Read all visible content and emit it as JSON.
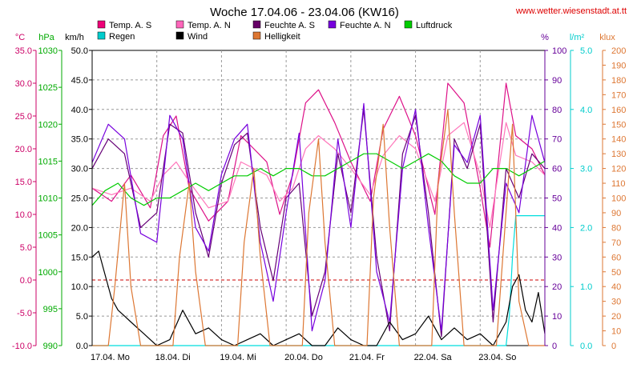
{
  "chart_data": {
    "type": "line",
    "title": "Woche 17.04.06 - 23.04.06 (KW16)",
    "source_label": "www.wetter.wiesenstadt.at.tt",
    "grid": true,
    "x_labels": [
      "17.04. Mo",
      "18.04. Di",
      "19.04. Mi",
      "20.04. Do",
      "21.04. Fr",
      "22.04. Sa",
      "23.04. So"
    ],
    "x_days": [
      0,
      7
    ],
    "axes": [
      {
        "id": "temp",
        "unit": "°C",
        "color": "#cc0066",
        "ylim": [
          -10,
          35
        ],
        "ticks": [
          "-10.0",
          "-5.0",
          "0.0",
          "5.0",
          "10.0",
          "15.0",
          "20.0",
          "25.0",
          "30.0",
          "35.0"
        ]
      },
      {
        "id": "press",
        "unit": "hPa",
        "color": "#00aa00",
        "ylim": [
          990,
          1030
        ],
        "ticks": [
          "990",
          "995",
          "1000",
          "1005",
          "1010",
          "1015",
          "1020",
          "1025",
          "1030"
        ]
      },
      {
        "id": "wind",
        "unit": "km/h",
        "color": "#000000",
        "ylim": [
          0,
          50
        ],
        "ticks": [
          "0.0",
          "5.0",
          "10.0",
          "15.0",
          "20.0",
          "25.0",
          "30.0",
          "35.0",
          "40.0",
          "45.0",
          "50.0"
        ]
      },
      {
        "id": "hum",
        "unit": "%",
        "color": "#660099",
        "ylim": [
          0,
          100
        ],
        "ticks": [
          "0",
          "10",
          "20",
          "30",
          "40",
          "50",
          "60",
          "70",
          "80",
          "90",
          "100"
        ]
      },
      {
        "id": "rain",
        "unit": "l/m²",
        "color": "#00cccc",
        "ylim": [
          0,
          5
        ],
        "ticks": [
          "0.0",
          "1.0",
          "2.0",
          "3.0",
          "4.0",
          "5.0"
        ]
      },
      {
        "id": "light",
        "unit": "klux",
        "color": "#dd7733",
        "ylim": [
          0,
          200
        ],
        "ticks": [
          "0",
          "10",
          "20",
          "30",
          "40",
          "50",
          "60",
          "70",
          "80",
          "90",
          "100",
          "110",
          "120",
          "130",
          "140",
          "150",
          "160",
          "170",
          "180",
          "190",
          "200"
        ]
      }
    ],
    "legend": [
      {
        "label": "Temp. A. S",
        "color": "#ee0077"
      },
      {
        "label": "Temp. A. N",
        "color": "#ff66bb"
      },
      {
        "label": "Feuchte A. S",
        "color": "#660066"
      },
      {
        "label": "Feuchte A. N",
        "color": "#7700dd"
      },
      {
        "label": "Luftdruck",
        "color": "#00cc00"
      },
      {
        "label": "Regen",
        "color": "#00cccc"
      },
      {
        "label": "Wind",
        "color": "#000000"
      },
      {
        "label": "Helligkeit",
        "color": "#dd7733"
      }
    ],
    "series": [
      {
        "name": "Temp. A. S",
        "axis": "temp",
        "color": "#dd1188",
        "x": [
          0,
          0.3,
          0.6,
          0.9,
          1.1,
          1.3,
          1.5,
          1.8,
          2.1,
          2.3,
          2.5,
          2.7,
          2.9,
          3.1,
          3.3,
          3.5,
          3.75,
          4.0,
          4.3,
          4.5,
          4.75,
          5.0,
          5.3,
          5.5,
          5.75,
          6.0,
          6.15,
          6.4,
          6.55,
          6.8,
          7.0
        ],
        "y": [
          14,
          12,
          16,
          11,
          22,
          25,
          14,
          9,
          12,
          22,
          20,
          18,
          10,
          16,
          27,
          29,
          24,
          18,
          12,
          23,
          28,
          22,
          10,
          30,
          27,
          14,
          5,
          30,
          22,
          20,
          16
        ]
      },
      {
        "name": "Temp. A. N",
        "axis": "temp",
        "color": "#ff77bb",
        "x": [
          0,
          0.3,
          0.6,
          0.9,
          1.1,
          1.3,
          1.5,
          1.8,
          2.1,
          2.3,
          2.5,
          2.7,
          2.9,
          3.1,
          3.3,
          3.5,
          3.75,
          4.0,
          4.3,
          4.5,
          4.75,
          5.0,
          5.3,
          5.5,
          5.75,
          6.0,
          6.15,
          6.4,
          6.55,
          6.8,
          7.0
        ],
        "y": [
          14,
          13,
          14,
          12,
          16,
          18,
          15,
          11,
          12,
          18,
          17,
          16,
          12,
          14,
          20,
          22,
          20,
          17,
          13,
          19,
          22,
          20,
          12,
          22,
          24,
          16,
          8,
          24,
          19,
          18,
          16
        ]
      },
      {
        "name": "Feuchte A. S",
        "axis": "hum",
        "color": "#660077",
        "x": [
          0,
          0.25,
          0.5,
          0.75,
          1.0,
          1.2,
          1.4,
          1.6,
          1.8,
          2.0,
          2.2,
          2.4,
          2.6,
          2.8,
          3.0,
          3.2,
          3.4,
          3.6,
          3.8,
          4.0,
          4.2,
          4.4,
          4.6,
          4.8,
          5.0,
          5.2,
          5.4,
          5.6,
          5.8,
          6.0,
          6.2,
          6.4,
          6.6,
          6.8,
          7.0
        ],
        "y": [
          60,
          70,
          65,
          40,
          45,
          75,
          72,
          45,
          30,
          55,
          68,
          72,
          40,
          22,
          50,
          55,
          10,
          25,
          65,
          45,
          80,
          30,
          5,
          65,
          78,
          45,
          3,
          70,
          60,
          75,
          8,
          60,
          50,
          65,
          60
        ]
      },
      {
        "name": "Feuchte A. N",
        "axis": "hum",
        "color": "#7700dd",
        "x": [
          0,
          0.25,
          0.5,
          0.75,
          1.0,
          1.2,
          1.4,
          1.6,
          1.8,
          2.0,
          2.2,
          2.4,
          2.6,
          2.8,
          3.0,
          3.2,
          3.4,
          3.6,
          3.8,
          4.0,
          4.2,
          4.4,
          4.6,
          4.8,
          5.0,
          5.2,
          5.4,
          5.6,
          5.8,
          6.0,
          6.2,
          6.4,
          6.6,
          6.8,
          7.0
        ],
        "y": [
          62,
          75,
          70,
          38,
          35,
          78,
          70,
          40,
          32,
          58,
          70,
          75,
          35,
          15,
          45,
          72,
          5,
          22,
          70,
          40,
          82,
          25,
          8,
          60,
          80,
          40,
          5,
          68,
          62,
          78,
          12,
          55,
          45,
          78,
          62
        ]
      },
      {
        "name": "Luftdruck",
        "axis": "press",
        "color": "#00cc00",
        "x": [
          0,
          0.2,
          0.4,
          0.6,
          0.8,
          1.0,
          1.2,
          1.4,
          1.6,
          1.8,
          2.0,
          2.2,
          2.4,
          2.6,
          2.8,
          3.0,
          3.2,
          3.4,
          3.6,
          3.8,
          4.0,
          4.2,
          4.4,
          4.6,
          4.8,
          5.0,
          5.2,
          5.4,
          5.6,
          5.8,
          6.0,
          6.2,
          6.4,
          6.6,
          6.8,
          7.0
        ],
        "y": [
          1009,
          1011,
          1012,
          1010,
          1009,
          1010,
          1010,
          1011,
          1012,
          1011,
          1012,
          1013,
          1013,
          1014,
          1013,
          1014,
          1014,
          1013,
          1013,
          1014,
          1015,
          1016,
          1016,
          1015,
          1014,
          1015,
          1016,
          1015,
          1013,
          1012,
          1012,
          1014,
          1014,
          1013,
          1014,
          1015
        ]
      },
      {
        "name": "Regen",
        "axis": "rain",
        "color": "#00dddd",
        "x": [
          0,
          6.4,
          6.45,
          6.5,
          6.55,
          6.6,
          7.0
        ],
        "y": [
          0,
          0,
          0.5,
          1.5,
          2.2,
          2.2,
          2.2
        ]
      },
      {
        "name": "Wind",
        "axis": "wind",
        "color": "#000000",
        "x": [
          0,
          0.1,
          0.2,
          0.3,
          0.4,
          0.5,
          0.6,
          0.7,
          0.8,
          0.9,
          1.0,
          1.2,
          1.4,
          1.6,
          1.8,
          2.0,
          2.2,
          2.4,
          2.6,
          2.8,
          3.0,
          3.2,
          3.4,
          3.6,
          3.8,
          4.0,
          4.2,
          4.4,
          4.6,
          4.8,
          5.0,
          5.2,
          5.4,
          5.6,
          5.8,
          6.0,
          6.2,
          6.4,
          6.5,
          6.6,
          6.7,
          6.8,
          6.9,
          7.0
        ],
        "y": [
          15,
          16,
          12,
          8,
          6,
          5,
          4,
          3,
          2,
          1,
          0,
          1,
          6,
          2,
          3,
          1,
          0,
          1,
          2,
          0,
          1,
          2,
          0,
          0,
          3,
          1,
          0,
          0,
          4,
          1,
          2,
          5,
          1,
          3,
          1,
          2,
          0,
          4,
          10,
          12,
          6,
          4,
          9,
          2
        ]
      },
      {
        "name": "Helligkeit",
        "axis": "light",
        "color": "#dd7733",
        "x": [
          0,
          0.25,
          0.35,
          0.5,
          0.6,
          0.75,
          1.0,
          1.25,
          1.35,
          1.5,
          1.6,
          1.75,
          2.0,
          2.25,
          2.35,
          2.5,
          2.6,
          2.75,
          3.0,
          3.25,
          3.35,
          3.5,
          3.6,
          3.75,
          4.0,
          4.25,
          4.35,
          4.5,
          4.6,
          4.75,
          5.0,
          5.25,
          5.35,
          5.5,
          5.6,
          5.75,
          6.0,
          6.25,
          6.35,
          6.5,
          6.6,
          6.75,
          7.0
        ],
        "y": [
          0,
          0,
          40,
          110,
          40,
          0,
          0,
          0,
          60,
          110,
          50,
          0,
          0,
          0,
          70,
          120,
          60,
          0,
          0,
          0,
          90,
          140,
          70,
          0,
          0,
          0,
          100,
          150,
          80,
          0,
          0,
          0,
          110,
          160,
          90,
          0,
          0,
          0,
          60,
          150,
          30,
          0,
          0
        ]
      }
    ]
  }
}
